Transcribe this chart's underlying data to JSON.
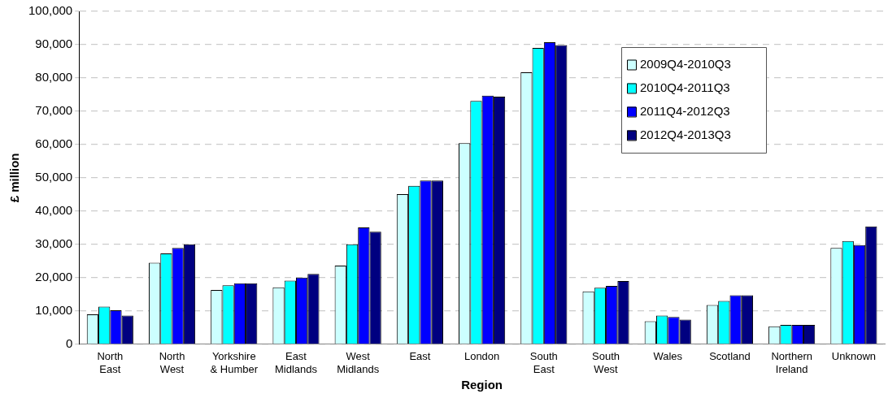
{
  "chart_data": {
    "type": "bar",
    "xlabel": "Region",
    "ylabel": "£ million",
    "categories": [
      "North\nEast",
      "North\nWest",
      "Yorkshire\n& Humber",
      "East\nMidlands",
      "West\nMidlands",
      "East",
      "London",
      "South\nEast",
      "South\nWest",
      "Wales",
      "Scotland",
      "Northern\nIreland",
      "Unknown"
    ],
    "series": [
      {
        "name": "2009Q4-2010Q3",
        "color": "#ccffff",
        "values": [
          9000,
          24500,
          16300,
          17100,
          23600,
          45100,
          60400,
          81700,
          15900,
          6900,
          11800,
          5400,
          28900
        ]
      },
      {
        "name": "2010Q4-2011Q3",
        "color": "#00ffff",
        "values": [
          11300,
          27300,
          17700,
          19100,
          30000,
          47600,
          73100,
          89000,
          17000,
          8600,
          13000,
          5800,
          31000
        ]
      },
      {
        "name": "2011Q4-2012Q3",
        "color": "#0000ff",
        "values": [
          10200,
          28900,
          18300,
          20000,
          35100,
          49200,
          74700,
          90700,
          17500,
          8200,
          14700,
          5800,
          29800
        ]
      },
      {
        "name": "2012Q4-2013Q3",
        "color": "#000080",
        "values": [
          8600,
          30000,
          18300,
          21100,
          33800,
          49200,
          74400,
          89900,
          19000,
          7400,
          14700,
          5800,
          35400
        ]
      }
    ],
    "ylim": [
      0,
      100000
    ],
    "yticks": [
      0,
      {
        "value": 10000,
        "label": "10,000"
      },
      {
        "value": 20000,
        "label": "20,000"
      },
      {
        "value": 30000,
        "label": "30,000"
      },
      {
        "value": 40000,
        "label": "40,000"
      },
      {
        "value": 50000,
        "label": "50,000"
      },
      {
        "value": 60000,
        "label": "60,000"
      },
      {
        "value": 70000,
        "label": "70,000"
      },
      {
        "value": 80000,
        "label": "80,000"
      },
      {
        "value": 90000,
        "label": "90,000"
      },
      {
        "value": 100000,
        "label": "100,000"
      }
    ],
    "grid": "y",
    "legend": "top right"
  }
}
